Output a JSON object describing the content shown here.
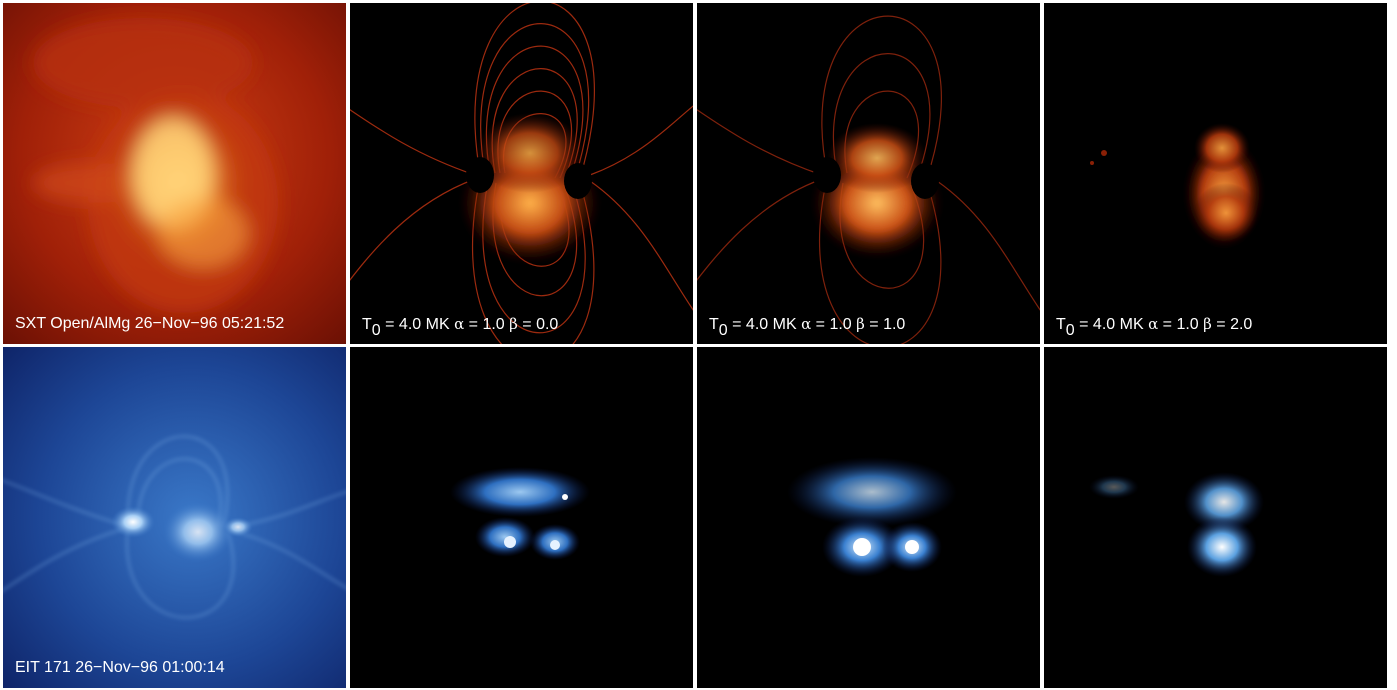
{
  "rows": [
    {
      "theme": "soft-xray",
      "panels": [
        {
          "kind": "observation",
          "caption": "SXT Open/AlMg 26−Nov−96 05:21:52"
        },
        {
          "kind": "model",
          "t_symbol": "T",
          "t_sub": "0",
          "t_value": "= 4.0 MK",
          "alpha_symbol": "α",
          "alpha_value": "= 1.0",
          "beta_symbol": "β",
          "beta_value": "= 0.0"
        },
        {
          "kind": "model",
          "t_symbol": "T",
          "t_sub": "0",
          "t_value": "= 4.0 MK",
          "alpha_symbol": "α",
          "alpha_value": "= 1.0",
          "beta_symbol": "β",
          "beta_value": "= 1.0"
        },
        {
          "kind": "model",
          "t_symbol": "T",
          "t_sub": "0",
          "t_value": "= 4.0 MK",
          "alpha_symbol": "α",
          "alpha_value": "= 1.0",
          "beta_symbol": "β",
          "beta_value": "= 2.0"
        }
      ]
    },
    {
      "theme": "euv-171",
      "panels": [
        {
          "kind": "observation",
          "caption": "EIT 171 26−Nov−96 01:00:14"
        },
        {
          "kind": "model"
        },
        {
          "kind": "model"
        },
        {
          "kind": "model"
        }
      ]
    }
  ],
  "colors": {
    "xray_dark": "#3a0500",
    "xray_mid": "#b02a0a",
    "xray_bright": "#ffc060",
    "euv_dark": "#0a1a55",
    "euv_mid": "#2e6fc0",
    "euv_bright": "#ffffff"
  }
}
